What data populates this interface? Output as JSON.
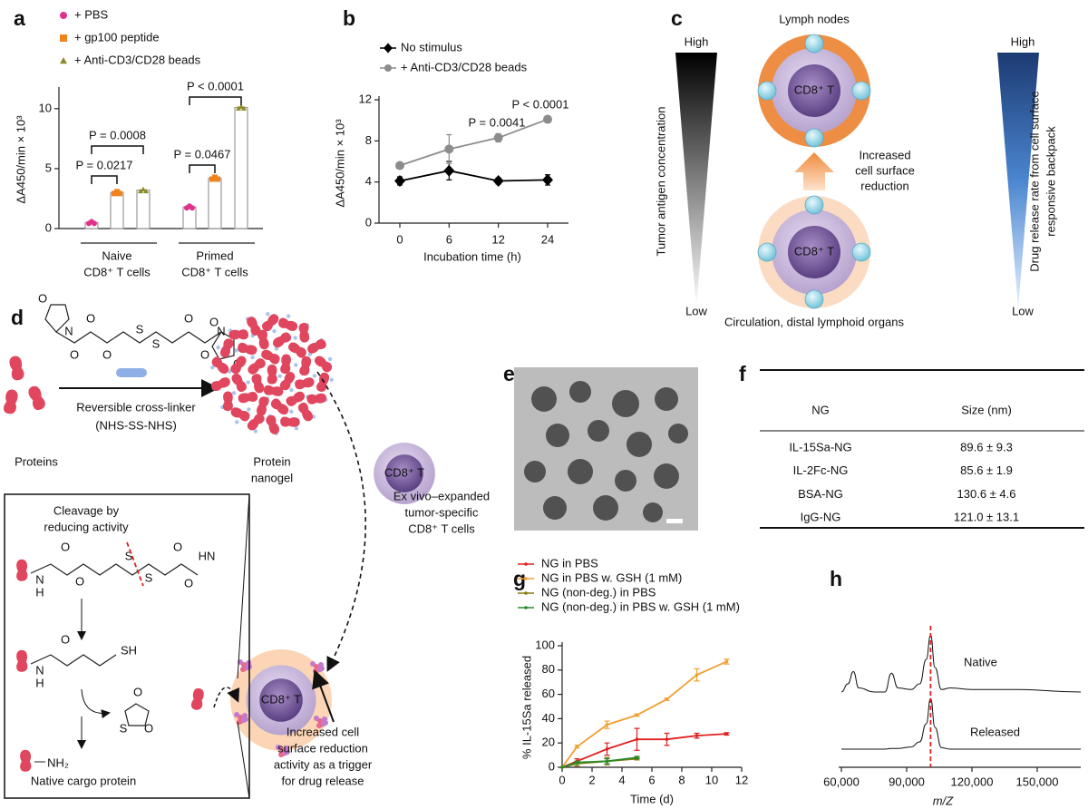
{
  "panel_labels": [
    "a",
    "b",
    "c",
    "d",
    "e",
    "f",
    "g",
    "h"
  ],
  "chart_data": [
    {
      "type": "bar",
      "ylabel": "ΔA450/min × 10³",
      "ylim": [
        0,
        11.5
      ],
      "yticks": [
        0,
        5,
        10
      ],
      "categories": [
        [
          "Naive",
          "CD8⁺ T cells"
        ],
        [
          "Primed",
          "CD8⁺ T cells"
        ]
      ],
      "series": [
        {
          "name": "+ PBS",
          "color": "#e0318f",
          "marker": "circle",
          "values": [
            0.5,
            1.8
          ]
        },
        {
          "name": "+ gp100 peptide",
          "color": "#f0821e",
          "marker": "square",
          "values": [
            3.0,
            4.2
          ]
        },
        {
          "name": "+ Anti-CD3/CD28 beads",
          "color": "#8b8b2b",
          "marker": "triangle",
          "values": [
            3.2,
            10.1
          ]
        }
      ],
      "annotations": [
        "P = 0.0217",
        "P = 0.0008",
        "P = 0.0467",
        "P < 0.0001"
      ]
    },
    {
      "type": "line",
      "xlabel": "Incubation time (h)",
      "ylabel": "ΔA450/min × 10³",
      "categories": [
        "0",
        "6",
        "12",
        "24"
      ],
      "ylim": [
        0,
        12
      ],
      "yticks": [
        0,
        4,
        8,
        12
      ],
      "series": [
        {
          "name": "No stimulus",
          "color": "#000000",
          "marker": "diamond",
          "values": [
            4.1,
            5.1,
            4.1,
            4.2
          ],
          "errors": [
            0.4,
            0.9,
            0.3,
            0.5
          ]
        },
        {
          "name": "+ Anti-CD3/CD28 beads",
          "color": "#8c8c8c",
          "marker": "circle",
          "values": [
            5.6,
            7.2,
            8.3,
            10.1
          ],
          "errors": [
            0.2,
            1.4,
            0.4,
            0.2
          ]
        }
      ],
      "annotations": [
        "P = 0.0041",
        "P < 0.0001"
      ]
    },
    {
      "type": "line",
      "xlabel": "Time (d)",
      "ylabel": "% IL-15Sa released",
      "xlim": [
        0,
        12
      ],
      "xticks": [
        0,
        2,
        4,
        6,
        8,
        10,
        12
      ],
      "ylim": [
        0,
        100
      ],
      "yticks": [
        0,
        20,
        40,
        60,
        80,
        100
      ],
      "series": [
        {
          "name": "NG in PBS",
          "color": "#e02020",
          "marker": "dot",
          "x": [
            0,
            1,
            3,
            5,
            7,
            9,
            11
          ],
          "values": [
            0,
            5,
            15,
            23,
            23,
            26,
            27.5
          ],
          "errors": [
            0,
            2,
            5,
            9,
            5,
            2,
            1
          ]
        },
        {
          "name": "NG in PBS w. GSH (1 mM)",
          "color": "#f0a030",
          "marker": "dot",
          "x": [
            0,
            1,
            3,
            5,
            7,
            9,
            11
          ],
          "values": [
            0,
            17,
            35,
            43,
            56,
            76,
            87
          ],
          "errors": [
            0,
            1,
            3,
            1,
            1,
            5,
            2
          ]
        },
        {
          "name": "NG (non-deg.) in PBS",
          "color": "#8a7a10",
          "marker": "dot",
          "x": [
            0,
            1,
            3,
            5
          ],
          "values": [
            0,
            3,
            5,
            7
          ],
          "errors": [
            0,
            2,
            3,
            1
          ]
        },
        {
          "name": "NG (non-deg.) in PBS w. GSH (1 mM)",
          "color": "#2a8a2a",
          "marker": "dot",
          "x": [
            0,
            1,
            3,
            5
          ],
          "values": [
            0,
            4,
            5,
            8
          ],
          "errors": [
            0,
            1,
            2,
            1
          ]
        }
      ]
    },
    {
      "type": "spectrum",
      "xlabel": "m/Z",
      "xlim": [
        60000,
        170000
      ],
      "xticks": [
        {
          "value": 60000,
          "label": "60,000"
        },
        {
          "value": 90000,
          "label": "90,000"
        },
        {
          "value": 120000,
          "label": "120,000"
        },
        {
          "value": 150000,
          "label": "150,000"
        }
      ],
      "marker_x": 101000,
      "marker_color": "#e02020",
      "series": [
        {
          "name": "Native",
          "color": "#111111",
          "x": [
            60000,
            63000,
            65500,
            68000,
            75000,
            80000,
            83000,
            86000,
            92000,
            96000,
            99000,
            101000,
            103000,
            106000,
            110000,
            120000,
            140000,
            170000
          ],
          "values": [
            0.3,
            0.4,
            0.55,
            0.35,
            0.3,
            0.3,
            0.53,
            0.35,
            0.33,
            0.4,
            0.7,
            1.0,
            0.6,
            0.33,
            0.35,
            0.33,
            0.33,
            0.3
          ]
        },
        {
          "name": "Released",
          "color": "#111111",
          "x": [
            60000,
            63000,
            65500,
            68000,
            75000,
            80000,
            83000,
            86000,
            92000,
            96000,
            99000,
            101000,
            103000,
            106000,
            110000,
            120000,
            140000,
            170000
          ],
          "values": [
            0.3,
            0.3,
            0.3,
            0.3,
            0.3,
            0.3,
            0.31,
            0.31,
            0.33,
            0.4,
            0.65,
            1.0,
            0.6,
            0.32,
            0.3,
            0.3,
            0.3,
            0.3
          ]
        }
      ]
    }
  ],
  "diagram_c": {
    "top_label": "Lymph nodes",
    "bottom_label": "Circulation, distal lymphoid organs",
    "cell_label": "CD8⁺ T",
    "arrow_label": [
      "Increased",
      "cell surface",
      "reduction"
    ],
    "left_scale": {
      "high": "High",
      "low": "Low",
      "label": "Tumor antigen concentration"
    },
    "right_scale": {
      "high": "High",
      "low": "Low",
      "label": [
        "Drug release rate from cell surface",
        "responsive backpack"
      ]
    }
  },
  "diagram_d": {
    "crosslinker": [
      "Reversible cross-linker",
      "(NHS-SS-NHS)"
    ],
    "proteins": "Proteins",
    "nanogel": [
      "Protein",
      "nanogel"
    ],
    "cell_label": "CD8⁺ T",
    "cells_caption": [
      "Ex vivo–expanded",
      "tumor-specific",
      "CD8⁺ T cells"
    ],
    "cleavage": [
      "Cleavage by",
      "reducing activity"
    ],
    "cargo": "Native cargo protein",
    "trigger": [
      "Increased cell",
      "surface reduction",
      "activity as a trigger",
      "for drug release"
    ],
    "linker_atoms": [
      "O",
      "N",
      "O",
      "O",
      "O",
      "S",
      "S",
      "O",
      "O",
      "O",
      "N",
      "O"
    ],
    "cleavage_atoms": [
      "N",
      "H",
      "O",
      "O",
      "S",
      "S",
      "O",
      "O",
      "HN"
    ],
    "thiol_atoms": [
      "N",
      "H",
      "O",
      "SH"
    ],
    "byproduct_atoms": [
      "O",
      "S",
      "O"
    ],
    "cargo_atoms": [
      "NH₂"
    ]
  },
  "table_f": {
    "header": [
      "NG",
      "Size (nm)"
    ],
    "rows": [
      [
        "IL-15Sa-NG",
        "89.6 ± 9.3"
      ],
      [
        "IL-2Fc-NG",
        "85.6 ± 1.9"
      ],
      [
        "BSA-NG",
        "130.6 ± 4.6"
      ],
      [
        "IgG-NG",
        "121.0 ± 13.1"
      ]
    ]
  }
}
